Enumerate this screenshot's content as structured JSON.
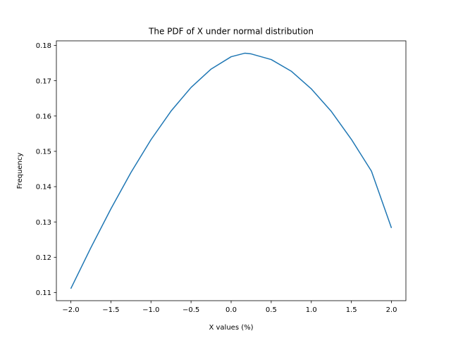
{
  "chart_data": {
    "type": "line",
    "title": "The PDF of X under normal distribution",
    "xlabel": "X values (%)",
    "ylabel": "Frequency",
    "xlim": [
      -2.18,
      2.18
    ],
    "ylim": [
      0.1077,
      0.1813
    ],
    "xticks": [
      -2.0,
      -1.5,
      -1.0,
      -0.5,
      0.0,
      0.5,
      1.0,
      1.5,
      2.0
    ],
    "xtick_labels": [
      "−2.0",
      "−1.5",
      "−1.0",
      "−0.5",
      "0.0",
      "0.5",
      "1.0",
      "1.5",
      "2.0"
    ],
    "yticks": [
      0.11,
      0.12,
      0.13,
      0.14,
      0.15,
      0.16,
      0.17,
      0.18
    ],
    "ytick_labels": [
      "0.11",
      "0.12",
      "0.13",
      "0.14",
      "0.15",
      "0.16",
      "0.17",
      "0.18"
    ],
    "grid": false,
    "line_color": "#1f77b4",
    "series": [
      {
        "x": [
          -2.0,
          -1.75,
          -1.5,
          -1.25,
          -1.0,
          -0.75,
          -0.5,
          -0.25,
          0.0,
          0.17,
          0.25,
          0.5,
          0.75,
          1.0,
          1.25,
          1.5,
          1.75,
          2.0
        ],
        "values": [
          0.1111,
          0.1227,
          0.1337,
          0.144,
          0.1533,
          0.1614,
          0.1681,
          0.1733,
          0.1768,
          0.1778,
          0.1776,
          0.176,
          0.1727,
          0.1677,
          0.1613,
          0.1534,
          0.1444,
          0.1283
        ]
      }
    ]
  }
}
